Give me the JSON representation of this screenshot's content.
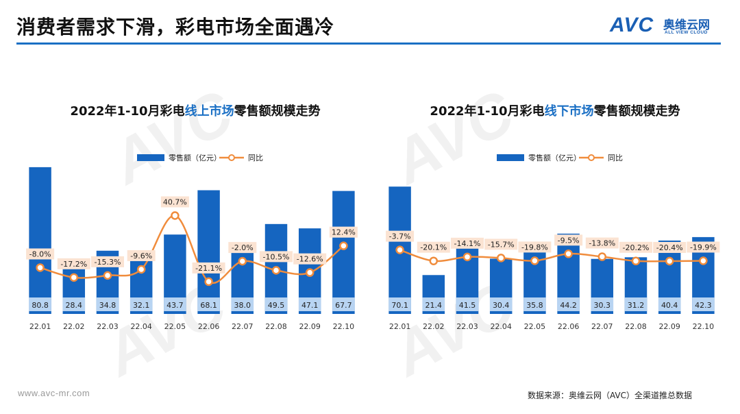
{
  "header": {
    "title": "消费者需求下滑，彩电市场全面遇冷"
  },
  "logo": {
    "mark": "AVC",
    "cn": "奥维云网",
    "en": "ALL VIEW CLOUD"
  },
  "footer": {
    "url": "www.avc-mr.com",
    "source": "数据来源：奥维云网（AVC）全渠道推总数据"
  },
  "colors": {
    "bar": "#1565c0",
    "bar_label_bg": "#b8d4f2",
    "line": "#f08c3c",
    "yoy_label_bg": "#fbe3d2",
    "accent": "#1a6fc4"
  },
  "chart_data": [
    {
      "type": "bar",
      "title_parts": [
        "2022年1-10月彩电",
        "线上市场",
        "零售额规模走势"
      ],
      "categories": [
        "22.01",
        "22.02",
        "22.03",
        "22.04",
        "22.05",
        "22.06",
        "22.07",
        "22.08",
        "22.09",
        "22.10"
      ],
      "series": [
        {
          "name": "零售额（亿元）",
          "type": "bar",
          "values": [
            80.8,
            28.4,
            34.8,
            32.1,
            43.7,
            68.1,
            38.0,
            49.5,
            47.1,
            67.7
          ],
          "labels": [
            "80.8",
            "28.4",
            "34.8",
            "32.1",
            "43.7",
            "68.1",
            "38.0",
            "49.5",
            "47.1",
            "67.7"
          ]
        },
        {
          "name": "同比",
          "type": "line",
          "values": [
            -8.0,
            -17.2,
            -15.3,
            -9.6,
            40.7,
            -21.1,
            -2.0,
            -10.5,
            -12.6,
            12.4
          ],
          "labels": [
            "-8.0%",
            "-17.2%",
            "-15.3%",
            "-9.6%",
            "40.7%",
            "-21.1%",
            "-2.0%",
            "-10.5%",
            "-12.6%",
            "12.4%"
          ]
        }
      ],
      "legend_position": "top"
    },
    {
      "type": "bar",
      "title_parts": [
        "2022年1-10月彩电",
        "线下市场",
        "零售额规模走势"
      ],
      "categories": [
        "22.01",
        "22.02",
        "22.03",
        "22.04",
        "22.05",
        "22.06",
        "22.07",
        "22.08",
        "22.09",
        "22.10"
      ],
      "series": [
        {
          "name": "零售额（亿元）",
          "type": "bar",
          "values": [
            70.1,
            21.4,
            41.5,
            30.4,
            35.8,
            44.2,
            30.3,
            31.2,
            40.4,
            42.3
          ],
          "labels": [
            "70.1",
            "21.4",
            "41.5",
            "30.4",
            "35.8",
            "44.2",
            "30.3",
            "31.2",
            "40.4",
            "42.3"
          ]
        },
        {
          "name": "同比",
          "type": "line",
          "values": [
            -3.7,
            -20.1,
            -14.1,
            -15.7,
            -19.8,
            -9.5,
            -13.8,
            -20.2,
            -20.4,
            -19.9
          ],
          "labels": [
            "-3.7%",
            "-20.1%",
            "-14.1%",
            "-15.7%",
            "-19.8%",
            "-9.5%",
            "-13.8%",
            "-20.2%",
            "-20.4%",
            "-19.9%"
          ]
        }
      ],
      "legend_position": "top"
    }
  ]
}
